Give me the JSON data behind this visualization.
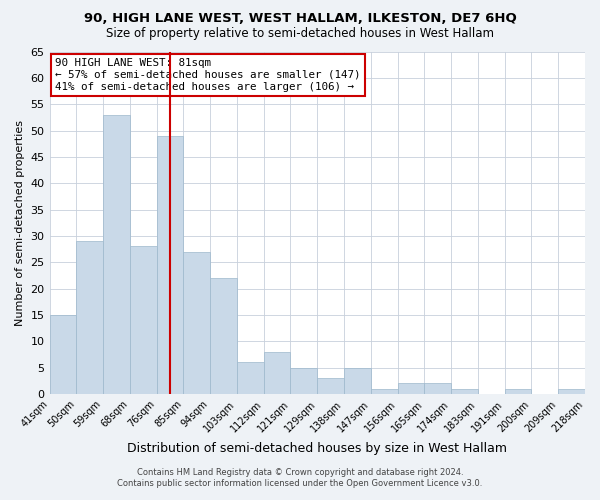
{
  "title": "90, HIGH LANE WEST, WEST HALLAM, ILKESTON, DE7 6HQ",
  "subtitle": "Size of property relative to semi-detached houses in West Hallam",
  "xlabel": "Distribution of semi-detached houses by size in West Hallam",
  "ylabel": "Number of semi-detached properties",
  "bar_labels": [
    "41sqm",
    "50sqm",
    "59sqm",
    "68sqm",
    "76sqm",
    "85sqm",
    "94sqm",
    "103sqm",
    "112sqm",
    "121sqm",
    "129sqm",
    "138sqm",
    "147sqm",
    "156sqm",
    "165sqm",
    "174sqm",
    "183sqm",
    "191sqm",
    "200sqm",
    "209sqm",
    "218sqm"
  ],
  "bar_values": [
    15,
    29,
    53,
    28,
    49,
    27,
    22,
    6,
    8,
    5,
    3,
    5,
    1,
    2,
    2,
    1,
    0,
    1,
    0,
    1
  ],
  "bar_color": "#c9d9e8",
  "bar_edge_color": "#9db8cc",
  "vline_x_index": 4.5,
  "vline_color": "#cc0000",
  "annotation_text": "90 HIGH LANE WEST: 81sqm\n← 57% of semi-detached houses are smaller (147)\n41% of semi-detached houses are larger (106) →",
  "annotation_box_color": "#ffffff",
  "annotation_box_edge": "#cc0000",
  "ylim": [
    0,
    65
  ],
  "yticks": [
    0,
    5,
    10,
    15,
    20,
    25,
    30,
    35,
    40,
    45,
    50,
    55,
    60,
    65
  ],
  "footnote1": "Contains HM Land Registry data © Crown copyright and database right 2024.",
  "footnote2": "Contains public sector information licensed under the Open Government Licence v3.0.",
  "bg_color": "#eef2f6",
  "plot_bg_color": "#ffffff",
  "grid_color": "#c8d0dc"
}
